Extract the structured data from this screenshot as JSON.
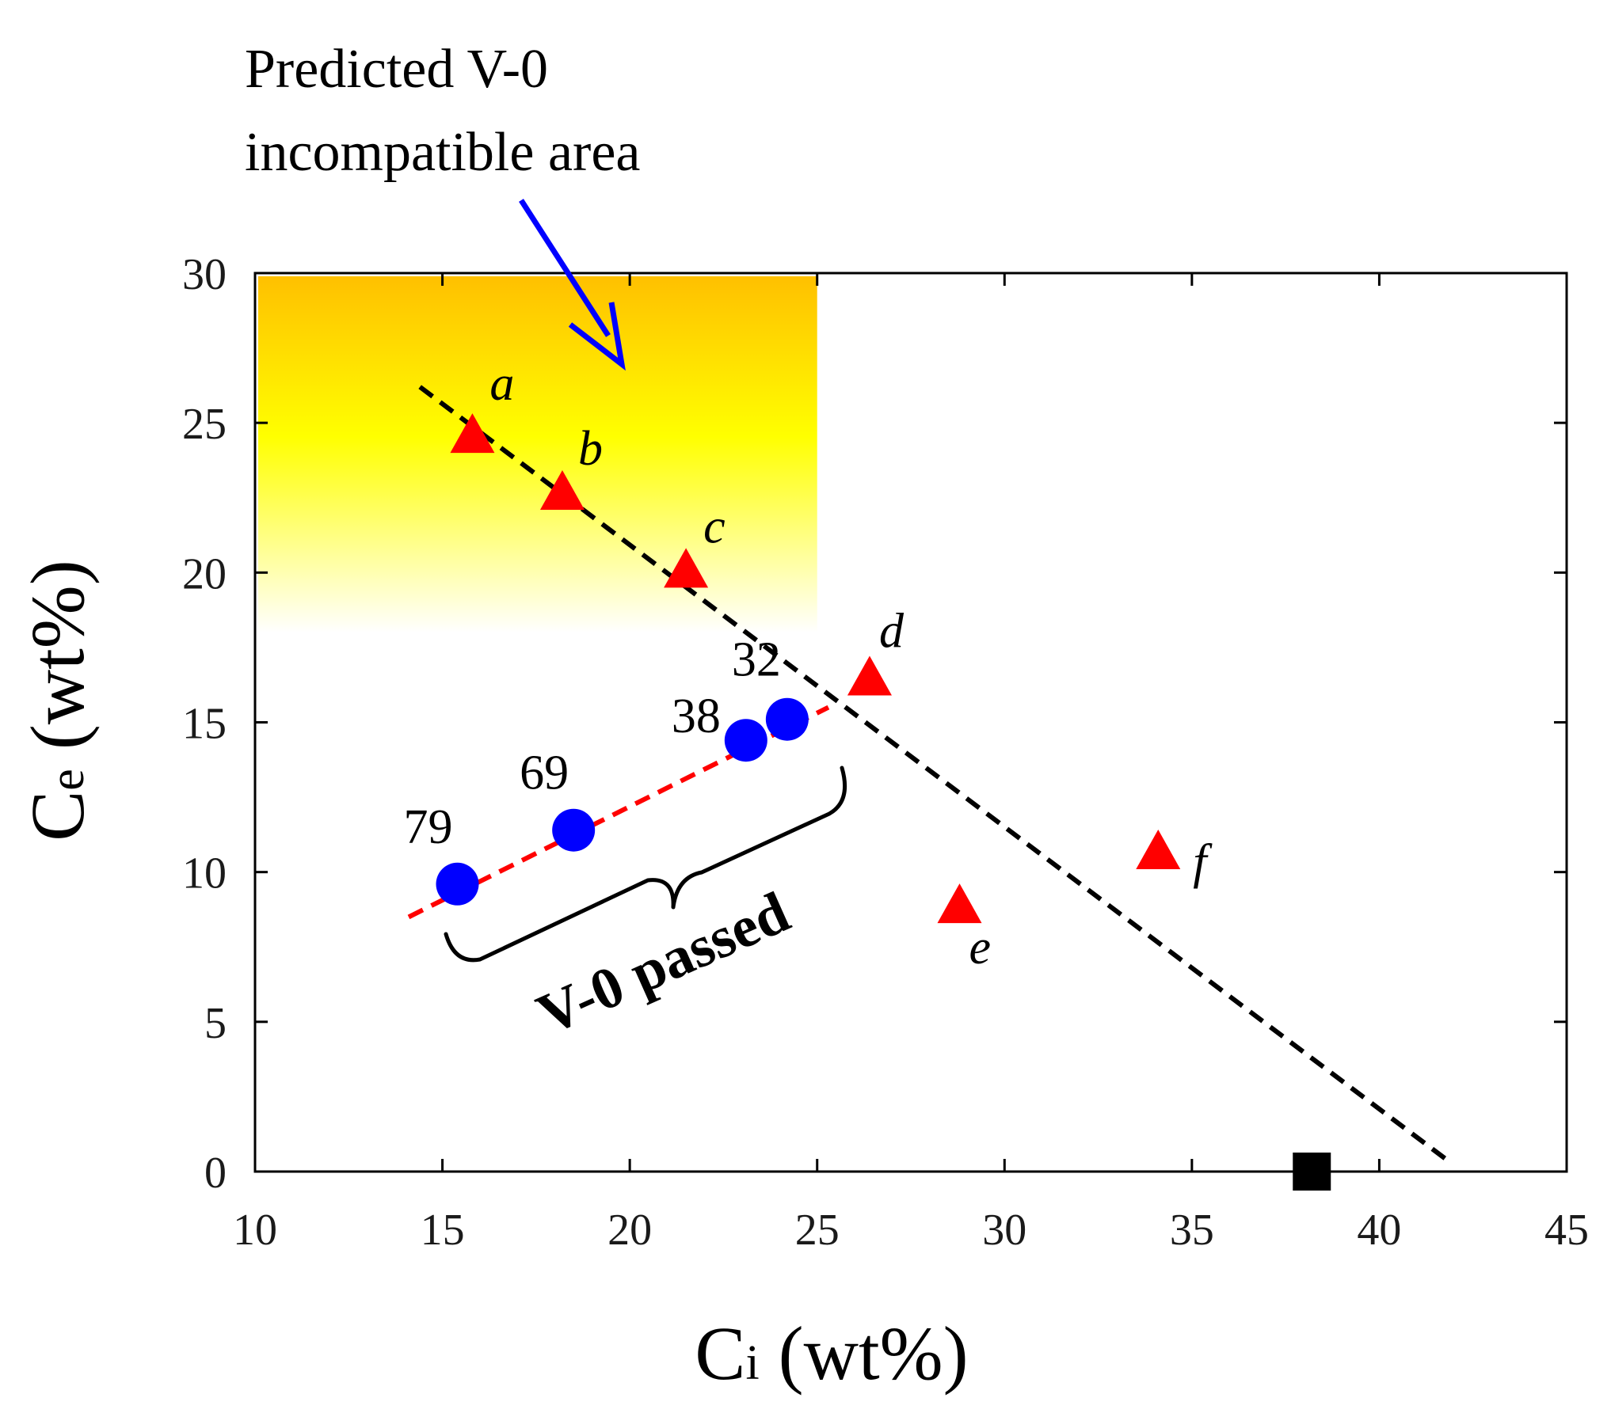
{
  "chart_data": {
    "type": "scatter",
    "xlabel": {
      "main": "C",
      "sub": "i",
      "rest": " (wt%)"
    },
    "ylabel": {
      "main": "C",
      "sub": "e",
      "rest": " (wt%)"
    },
    "xlim": [
      10,
      45
    ],
    "ylim": [
      0,
      30
    ],
    "xticks": [
      10,
      15,
      20,
      25,
      30,
      35,
      40,
      45
    ],
    "yticks": [
      0,
      5,
      10,
      15,
      20,
      25,
      30
    ],
    "annotation": {
      "line1": "Predicted V-0",
      "line2": "incompatible area"
    },
    "region_label": "V-0 passed",
    "incompatible_region": {
      "x": [
        10,
        25
      ],
      "y": [
        18,
        30
      ],
      "colors": [
        "#FFC000",
        "#FFFF00",
        "#FFFFFF"
      ]
    },
    "series": [
      {
        "marker": "triangle",
        "color": "#FF0000",
        "points": [
          {
            "x": 15.8,
            "y": 24.5,
            "label": "a"
          },
          {
            "x": 18.2,
            "y": 22.6,
            "label": "b"
          },
          {
            "x": 21.5,
            "y": 20.0,
            "label": "c"
          },
          {
            "x": 26.4,
            "y": 16.4,
            "label": "d"
          },
          {
            "x": 28.8,
            "y": 8.8,
            "label": "e"
          },
          {
            "x": 34.1,
            "y": 10.6,
            "label": "f"
          }
        ]
      },
      {
        "marker": "circle",
        "color": "#0000FF",
        "points": [
          {
            "x": 15.4,
            "y": 9.6,
            "label": "79"
          },
          {
            "x": 18.5,
            "y": 11.4,
            "label": "69"
          },
          {
            "x": 23.1,
            "y": 14.4,
            "label": "38"
          },
          {
            "x": 24.2,
            "y": 15.1,
            "label": "32"
          }
        ]
      },
      {
        "marker": "square",
        "color": "#000000",
        "points": [
          {
            "x": 38.2,
            "y": 0
          }
        ]
      }
    ],
    "lines": [
      {
        "style": "dashed",
        "color": "#000000",
        "from": [
          14.4,
          26.2
        ],
        "to": [
          41.9,
          0.3
        ]
      },
      {
        "style": "dashed",
        "color": "#FF0000",
        "from": [
          14.1,
          8.5
        ],
        "to": [
          25.3,
          15.5
        ]
      }
    ]
  }
}
